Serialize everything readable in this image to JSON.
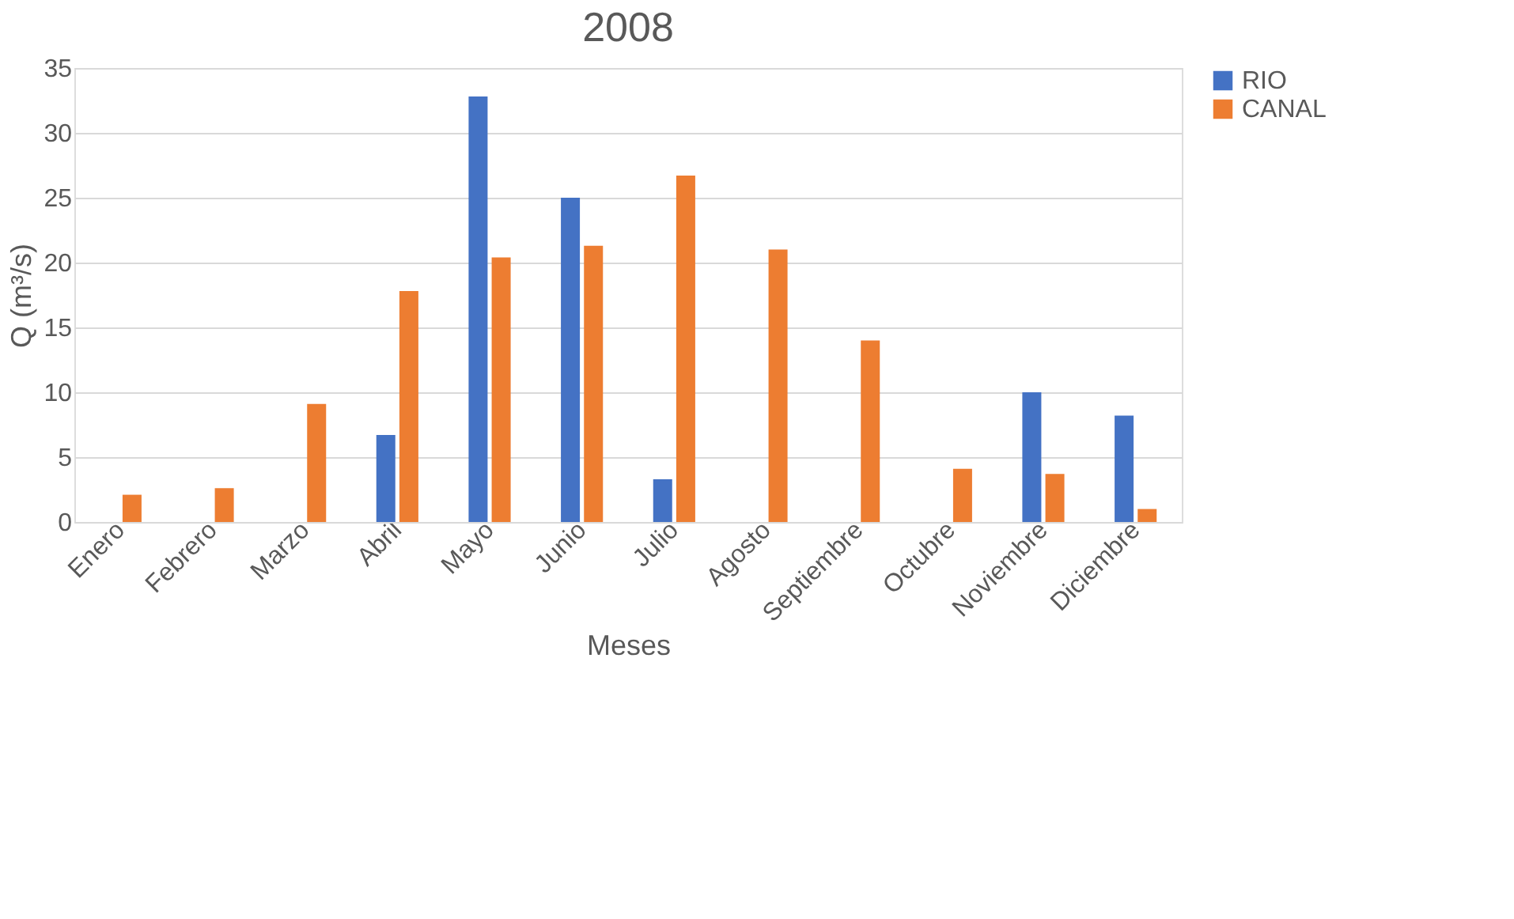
{
  "chart_data": {
    "type": "bar",
    "title": "2008",
    "xlabel": "Meses",
    "ylabel": "Q (m³/s)",
    "categories": [
      "Enero",
      "Febrero",
      "Marzo",
      "Abril",
      "Mayo",
      "Junio",
      "Julio",
      "Agosto",
      "Septiembre",
      "Octubre",
      "Noviembre",
      "Diciembre"
    ],
    "series": [
      {
        "name": "RIO",
        "color": "#4472c4",
        "values": [
          null,
          null,
          null,
          6.7,
          32.8,
          25,
          3.3,
          null,
          null,
          null,
          10,
          8.2
        ]
      },
      {
        "name": "CANAL",
        "color": "#ed7d31",
        "values": [
          2.1,
          2.6,
          9.1,
          17.8,
          20.4,
          21.3,
          26.7,
          21,
          14,
          4.1,
          3.7,
          1
        ]
      }
    ],
    "ylim": [
      0,
      35
    ],
    "yticks": [
      0,
      5,
      10,
      15,
      20,
      25,
      30,
      35
    ],
    "grid": "y",
    "legend": "right"
  }
}
